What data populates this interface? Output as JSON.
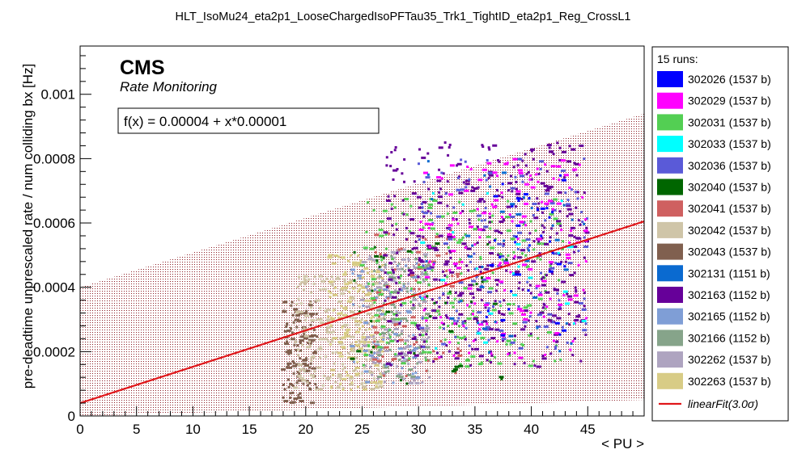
{
  "chart_data": {
    "type": "scatter",
    "title": "HLT_IsoMu24_eta2p1_LooseChargedIsoPFTau35_Trk1_TightID_eta2p1_Reg_CrossL1",
    "xlabel": "< PU >",
    "ylabel": "pre-deadtime unprescaled rate / num colliding bx [Hz]",
    "xlim": [
      0,
      50
    ],
    "ylim": [
      0,
      0.00115
    ],
    "x_ticks": [
      0,
      5,
      10,
      15,
      20,
      25,
      30,
      35,
      40,
      45
    ],
    "x_tick_labels": [
      "0",
      "5",
      "10",
      "15",
      "20",
      "25",
      "30",
      "35",
      "40",
      "45"
    ],
    "y_ticks": [
      0,
      0.0002,
      0.0004,
      0.0006,
      0.0008,
      0.001
    ],
    "y_tick_labels": [
      "0",
      "0.0002",
      "0.0004",
      "0.0006",
      "0.0008",
      "0.001"
    ],
    "grid": false,
    "legend_position": "right",
    "cms_label": "CMS",
    "cms_sublabel": "Rate Monitoring",
    "fit_formula_label": "f(x) = 0.00004 + x*0.00001",
    "fit": {
      "intercept": 4e-05,
      "slope": 1.13e-05,
      "band_at_x0": [
        0.0,
        0.0004
      ],
      "band_at_x50": [
        5e-05,
        0.00094
      ],
      "color": "#e0161a"
    },
    "legend_header": "15 runs:",
    "series": [
      {
        "name": "302026 (1537 b)",
        "color": "#0000ff"
      },
      {
        "name": "302029 (1537 b)",
        "color": "#ff00ff"
      },
      {
        "name": "302031 (1537 b)",
        "color": "#53cf53"
      },
      {
        "name": "302033 (1537 b)",
        "color": "#00ffff"
      },
      {
        "name": "302036 (1537 b)",
        "color": "#5a5ad8"
      },
      {
        "name": "302040 (1537 b)",
        "color": "#006600"
      },
      {
        "name": "302041 (1537 b)",
        "color": "#cf6060"
      },
      {
        "name": "302042 (1537 b)",
        "color": "#cfc5a8"
      },
      {
        "name": "302043 (1537 b)",
        "color": "#80604f"
      },
      {
        "name": "302131 (1151 b)",
        "color": "#0a6ad0"
      },
      {
        "name": "302163 (1152 b)",
        "color": "#660099"
      },
      {
        "name": "302165 (1152 b)",
        "color": "#7f9ed6"
      },
      {
        "name": "302166 (1152 b)",
        "color": "#86a48a"
      },
      {
        "name": "302262 (1537 b)",
        "color": "#aea4c0"
      },
      {
        "name": "302263 (1537 b)",
        "color": "#d8cc86"
      }
    ],
    "fit_legend_label": "linearFit(3.0σ)",
    "point_clusters": [
      {
        "series": 8,
        "x": [
          18,
          21
        ],
        "y": [
          4e-05,
          0.00036
        ],
        "n": 130
      },
      {
        "series": 7,
        "x": [
          19,
          27
        ],
        "y": [
          8e-05,
          0.00044
        ],
        "n": 240
      },
      {
        "series": 14,
        "x": [
          22,
          27
        ],
        "y": [
          8e-05,
          0.0005
        ],
        "n": 160
      },
      {
        "series": 13,
        "x": [
          25,
          31
        ],
        "y": [
          0.0001,
          0.00052
        ],
        "n": 140
      },
      {
        "series": 12,
        "x": [
          26,
          31
        ],
        "y": [
          0.00012,
          0.0005
        ],
        "n": 90
      },
      {
        "series": 11,
        "x": [
          24,
          30
        ],
        "y": [
          0.0001,
          0.00048
        ],
        "n": 60
      },
      {
        "series": 6,
        "x": [
          26,
          34
        ],
        "y": [
          0.00012,
          0.00058
        ],
        "n": 70
      },
      {
        "series": 2,
        "x": [
          25,
          43
        ],
        "y": [
          0.00015,
          0.00068
        ],
        "n": 220
      },
      {
        "series": 10,
        "x": [
          27,
          45
        ],
        "y": [
          0.00015,
          0.00085
        ],
        "n": 420
      },
      {
        "series": 4,
        "x": [
          30,
          45
        ],
        "y": [
          0.0002,
          0.0008
        ],
        "n": 150
      },
      {
        "series": 1,
        "x": [
          30,
          45
        ],
        "y": [
          0.00018,
          0.0008
        ],
        "n": 160
      },
      {
        "series": 0,
        "x": [
          36,
          44
        ],
        "y": [
          0.00025,
          0.00075
        ],
        "n": 40
      },
      {
        "series": 5,
        "x": [
          24,
          38
        ],
        "y": [
          0.0001,
          0.00055
        ],
        "n": 40
      },
      {
        "series": 9,
        "x": [
          30,
          45
        ],
        "y": [
          0.00015,
          0.0008
        ],
        "n": 40
      },
      {
        "series": 3,
        "x": [
          30,
          45
        ],
        "y": [
          0.0002,
          0.0007
        ],
        "n": 25
      }
    ]
  }
}
